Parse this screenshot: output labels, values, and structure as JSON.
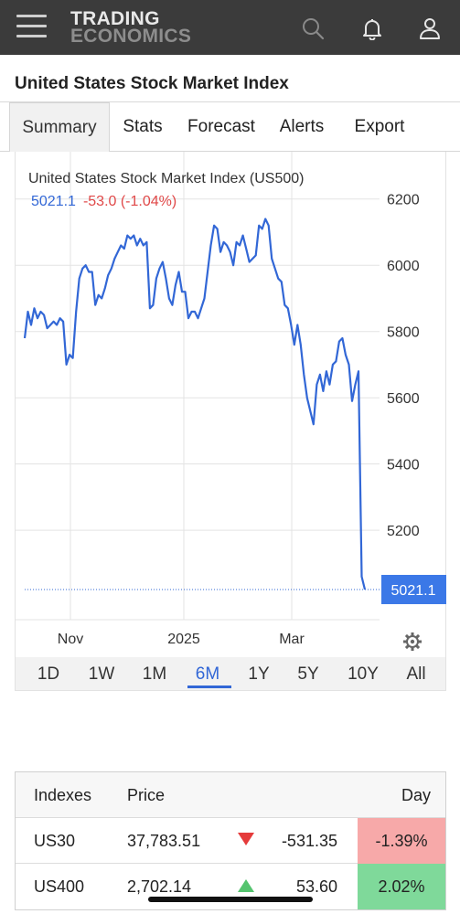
{
  "header": {
    "logo_line1": "TRADING",
    "logo_line2": "ECONOMICS",
    "icons": [
      "menu-icon",
      "search-icon",
      "bell-icon",
      "user-icon"
    ]
  },
  "page": {
    "title": "United States Stock Market Index"
  },
  "tabs": [
    "Summary",
    "Stats",
    "Forecast",
    "Alerts",
    "Export"
  ],
  "active_tab": "Summary",
  "chart": {
    "title": "United States Stock Market Index (US500)",
    "last_value": "5021.1",
    "change": "-53.0 (-1.04%)",
    "price_tag": "5021.1",
    "settings_icon": "gear-icon"
  },
  "chart_data": {
    "type": "line",
    "title": "United States Stock Market Index (US500)",
    "xlabel": "",
    "ylabel": "",
    "x_ticks": [
      "Nov",
      "2025",
      "Mar"
    ],
    "y_ticks": [
      5200,
      5400,
      5600,
      5800,
      6000,
      6200
    ],
    "ylim": [
      4930,
      6260
    ],
    "grid": true,
    "series": [
      {
        "values": [
          5780,
          5860,
          5820,
          5870,
          5840,
          5860,
          5850,
          5810,
          5820,
          5830,
          5820,
          5840,
          5830,
          5700,
          5730,
          5720,
          5860,
          5960,
          5990,
          6000,
          5980,
          5980,
          5880,
          5910,
          5900,
          5930,
          5970,
          5990,
          6020,
          6040,
          6060,
          6050,
          6090,
          6080,
          6090,
          6060,
          6080,
          6060,
          6070,
          5870,
          5880,
          5960,
          5990,
          6010,
          5960,
          5900,
          5880,
          5940,
          5980,
          5920,
          5920,
          5840,
          5860,
          5860,
          5840,
          5870,
          5900,
          5980,
          6060,
          6120,
          6110,
          6040,
          6070,
          6060,
          6040,
          6000,
          6070,
          6060,
          6090,
          6050,
          6010,
          6020,
          6030,
          6120,
          6110,
          6140,
          6120,
          6020,
          5990,
          5960,
          5950,
          5880,
          5870,
          5820,
          5760,
          5820,
          5760,
          5670,
          5600,
          5560,
          5520,
          5640,
          5670,
          5620,
          5680,
          5640,
          5700,
          5710,
          5770,
          5780,
          5730,
          5700,
          5590,
          5640,
          5680,
          5060,
          5021.1
        ]
      }
    ],
    "last_value": 5021.1
  },
  "ranges": [
    "1D",
    "1W",
    "1M",
    "6M",
    "1Y",
    "5Y",
    "10Y",
    "All"
  ],
  "active_range": "6M",
  "table": {
    "headers": {
      "name": "Indexes",
      "price": "Price",
      "day": "Day"
    },
    "rows": [
      {
        "name": "US30",
        "price": "37,783.51",
        "change": "-531.35",
        "day": "-1.39%",
        "direction": "down"
      },
      {
        "name": "US400",
        "price": "2,702.14",
        "change": "53.60",
        "day": "2.02%",
        "direction": "up"
      }
    ]
  },
  "colors": {
    "line": "#3267d6",
    "negative": "#e04848",
    "day_negative_bg": "#f7a9a9",
    "day_positive_bg": "#7fd99a",
    "header_bg": "#3b3b3b"
  }
}
